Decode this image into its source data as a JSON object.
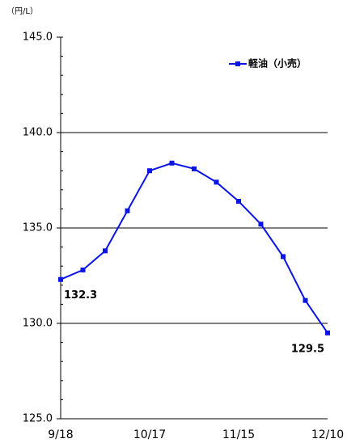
{
  "chart_data": {
    "type": "line",
    "unit_label": "（円/L）",
    "categories": [
      "9/18",
      null,
      null,
      null,
      "10/17",
      null,
      null,
      null,
      "11/15",
      null,
      null,
      null,
      "12/10"
    ],
    "series": [
      {
        "name": "軽油（小売）",
        "color": "#0a14e6",
        "values": [
          132.3,
          132.8,
          133.8,
          135.9,
          138.0,
          138.4,
          138.1,
          137.4,
          136.4,
          135.2,
          133.5,
          131.2,
          129.5
        ],
        "value_labels": [
          "132.3",
          null,
          null,
          null,
          null,
          null,
          null,
          null,
          null,
          null,
          null,
          null,
          "129.5"
        ]
      }
    ],
    "ylim": [
      125,
      145
    ],
    "yticks": [
      {
        "value": 125,
        "label": "125.0"
      },
      {
        "value": 130,
        "label": "130.0"
      },
      {
        "value": 135,
        "label": "135.0"
      },
      {
        "value": 140,
        "label": "140.0"
      },
      {
        "value": 145,
        "label": "145.0"
      }
    ],
    "grid": true,
    "legend": "top-right"
  }
}
